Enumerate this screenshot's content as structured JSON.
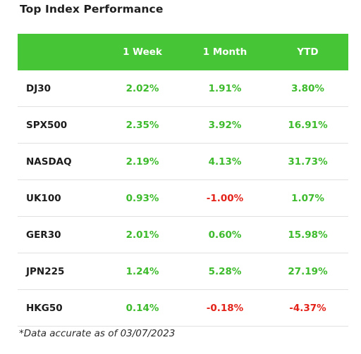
{
  "title": "Top Index Performance",
  "columns": [
    "",
    "1 Week",
    "1 Month",
    "YTD"
  ],
  "colors": {
    "header_bg": "#46c636",
    "positive": "#3dbb2c",
    "negative": "#e3231a"
  },
  "rows": [
    {
      "name": "DJ30",
      "week": "2.02%",
      "month": "1.91%",
      "ytd": "3.80%",
      "week_sign": "pos",
      "month_sign": "pos",
      "ytd_sign": "pos"
    },
    {
      "name": "SPX500",
      "week": "2.35%",
      "month": "3.92%",
      "ytd": "16.91%",
      "week_sign": "pos",
      "month_sign": "pos",
      "ytd_sign": "pos"
    },
    {
      "name": "NASDAQ",
      "week": "2.19%",
      "month": "4.13%",
      "ytd": "31.73%",
      "week_sign": "pos",
      "month_sign": "pos",
      "ytd_sign": "pos"
    },
    {
      "name": "UK100",
      "week": "0.93%",
      "month": "-1.00%",
      "ytd": "1.07%",
      "week_sign": "pos",
      "month_sign": "neg",
      "ytd_sign": "pos"
    },
    {
      "name": "GER30",
      "week": "2.01%",
      "month": "0.60%",
      "ytd": "15.98%",
      "week_sign": "pos",
      "month_sign": "pos",
      "ytd_sign": "pos"
    },
    {
      "name": "JPN225",
      "week": "1.24%",
      "month": "5.28%",
      "ytd": "27.19%",
      "week_sign": "pos",
      "month_sign": "pos",
      "ytd_sign": "pos"
    },
    {
      "name": "HKG50",
      "week": "0.14%",
      "month": "-0.18%",
      "ytd": "-4.37%",
      "week_sign": "pos",
      "month_sign": "neg",
      "ytd_sign": "neg"
    }
  ],
  "footnote": "*Data accurate as of 03/07/2023"
}
